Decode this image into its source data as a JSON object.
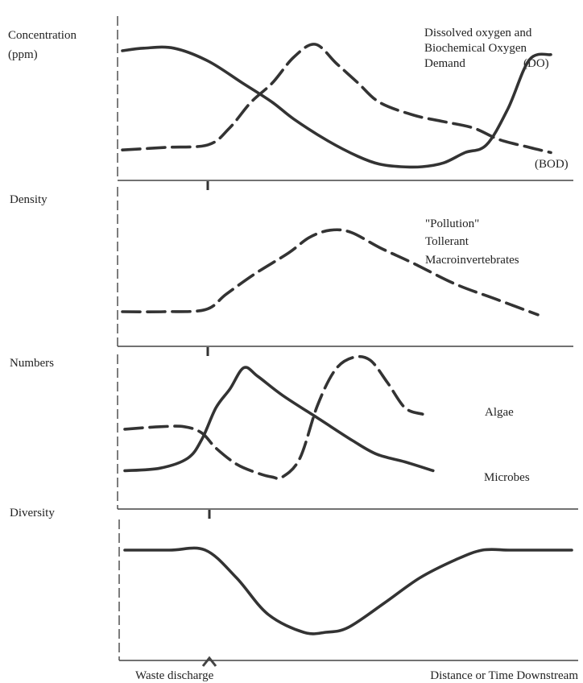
{
  "chart_data": [
    {
      "type": "line",
      "ylabel": "Concentration (ppm)",
      "title": "Dissolved oxygen and Biochemical Oxygen Demand",
      "xlabel": "",
      "series": [
        {
          "name": "DO",
          "style": "solid",
          "x": [
            0,
            5,
            12,
            20,
            28,
            35,
            40,
            48,
            55,
            60,
            65,
            70,
            75,
            80,
            85,
            90,
            95,
            100
          ],
          "y": [
            95,
            97,
            97,
            87,
            70,
            55,
            42,
            25,
            13,
            7,
            5,
            5,
            8,
            16,
            22,
            50,
            88,
            92
          ]
        },
        {
          "name": "BOD",
          "style": "dashed",
          "x": [
            0,
            10,
            20,
            25,
            30,
            35,
            40,
            45,
            50,
            55,
            60,
            68,
            75,
            82,
            88,
            95,
            100
          ],
          "y": [
            18,
            20,
            22,
            35,
            55,
            70,
            90,
            100,
            85,
            70,
            55,
            45,
            40,
            35,
            26,
            20,
            16
          ]
        }
      ]
    },
    {
      "type": "line",
      "ylabel": "Density",
      "title": "",
      "xlabel": "",
      "series": [
        {
          "name": "\"Pollution\" Tollerant Macroinvertebrates",
          "style": "dashed",
          "x": [
            0,
            10,
            20,
            25,
            32,
            40,
            45,
            50,
            55,
            62,
            70,
            80,
            90,
            100
          ],
          "y": [
            18,
            18,
            20,
            35,
            55,
            75,
            90,
            97,
            95,
            80,
            65,
            45,
            30,
            15
          ]
        }
      ]
    },
    {
      "type": "line",
      "ylabel": "Numbers",
      "title": "",
      "xlabel": "",
      "series": [
        {
          "name": "Microbes",
          "style": "solid",
          "x": [
            0,
            10,
            18,
            22,
            26,
            30,
            34,
            38,
            45,
            55,
            65,
            72,
            80,
            88
          ],
          "y": [
            10,
            12,
            20,
            35,
            60,
            75,
            92,
            85,
            70,
            52,
            34,
            23,
            17,
            10
          ]
        },
        {
          "name": "Algae",
          "style": "dashed",
          "x": [
            0,
            10,
            17,
            22,
            26,
            32,
            38,
            42,
            45,
            50,
            55,
            60,
            65,
            70,
            75,
            80,
            85
          ],
          "y": [
            43,
            45,
            45,
            40,
            28,
            15,
            8,
            5,
            5,
            20,
            62,
            90,
            100,
            98,
            80,
            60,
            55
          ]
        }
      ]
    },
    {
      "type": "line",
      "ylabel": "Diversity",
      "title": "",
      "xlabel": "Distance or Time Downstream",
      "annotation": "Waste discharge",
      "series": [
        {
          "name": "Diversity",
          "style": "solid",
          "x": [
            0,
            10,
            18,
            25,
            32,
            40,
            45,
            50,
            58,
            66,
            74,
            80,
            86,
            92,
            100
          ],
          "y": [
            78,
            78,
            78,
            55,
            25,
            10,
            10,
            14,
            34,
            55,
            70,
            78,
            78,
            78,
            78
          ]
        }
      ]
    }
  ],
  "labels": {
    "do_tag": "(DO)",
    "bod_tag": "(BOD)",
    "title_line1": "Dissolved oxygen and",
    "title_line2": "Biochemical Oxygen",
    "title_line3": "Demand",
    "y1_line1": "Concentration",
    "y1_line2": "(ppm)",
    "y2": "Density",
    "y3": "Numbers",
    "y4": "Diversity",
    "macro_line1": "\"Pollution\"",
    "macro_line2": "Tollerant",
    "macro_line3": "Macroinvertebrates",
    "algae": "Algae",
    "microbes": "Microbes",
    "waste": "Waste discharge",
    "xaxis": "Distance or Time Downstream"
  }
}
